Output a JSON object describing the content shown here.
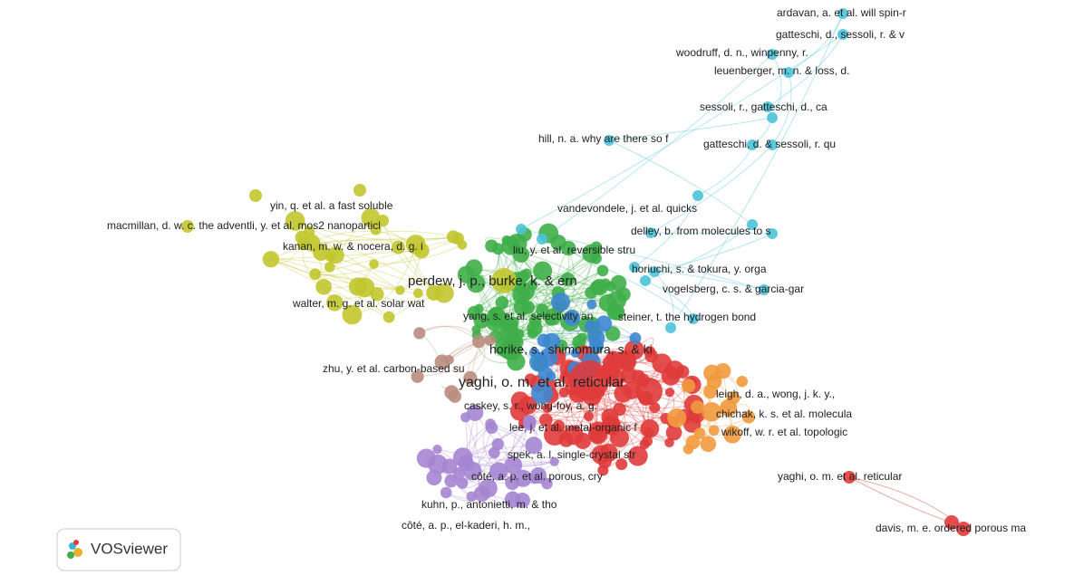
{
  "nodes": [
    {
      "label": "ardavan, a. et al. will spin-r"
    },
    {
      "label": "gatteschi, d., sessoli, r. & v"
    },
    {
      "label": "woodruff, d. n., winpenny, r."
    },
    {
      "label": "leuenberger, m. n. & loss, d."
    },
    {
      "label": "sessoli, r., gatteschi, d., ca"
    },
    {
      "label": "hill, n. a. why are there so f"
    },
    {
      "label": "gatteschi, d. & sessoli, r. qu"
    },
    {
      "label": "yin, q. et al. a fast soluble"
    },
    {
      "label": "vandevondele, j. et al. quicks"
    },
    {
      "label": "macmillan, d. w. c. the adventli, y. et al. mos2 nanoparticl"
    },
    {
      "label": "delley, b. from molecules to s"
    },
    {
      "label": "kanan, m. w. & nocera, d. g. i"
    },
    {
      "label": "liu, y. et al. reversible stru"
    },
    {
      "label": "perdew, j. p., burke, k. & ern"
    },
    {
      "label": "horiuchi, s. & tokura, y. orga"
    },
    {
      "label": "vogelsberg, c. s. & garcia-gar"
    },
    {
      "label": "walter, m. g. et al. solar wat"
    },
    {
      "label": "yang, s. et al. selectivity an"
    },
    {
      "label": "steiner, t. the hydrogen bond"
    },
    {
      "label": "horike, s., shimomura, s. & ki"
    },
    {
      "label": "zhu, y. et al. carbon-based su"
    },
    {
      "label": "yaghi, o. m. et al. reticular"
    },
    {
      "label": "leigh, d. a., wong, j. k. y.,"
    },
    {
      "label": "caskey, s. r., wong-foy, a. g."
    },
    {
      "label": "chichak, k. s. et al. molecula"
    },
    {
      "label": "lee, j. et al. metal-organic f"
    },
    {
      "label": "wikoff, w. r. et al. topologic"
    },
    {
      "label": "spek, a. l. single-crystal str"
    },
    {
      "label": "yaghi, o. m. et al. reticular"
    },
    {
      "label": "côté, a. p. et al. porous, cry"
    },
    {
      "label": "kuhn, p., antonietti, m. & tho"
    },
    {
      "label": "côté, a. p., el-kaderi, h. m.,"
    },
    {
      "label": "davis, m. e. ordered porous ma"
    }
  ],
  "logo": {
    "text": "VOSviewer"
  }
}
